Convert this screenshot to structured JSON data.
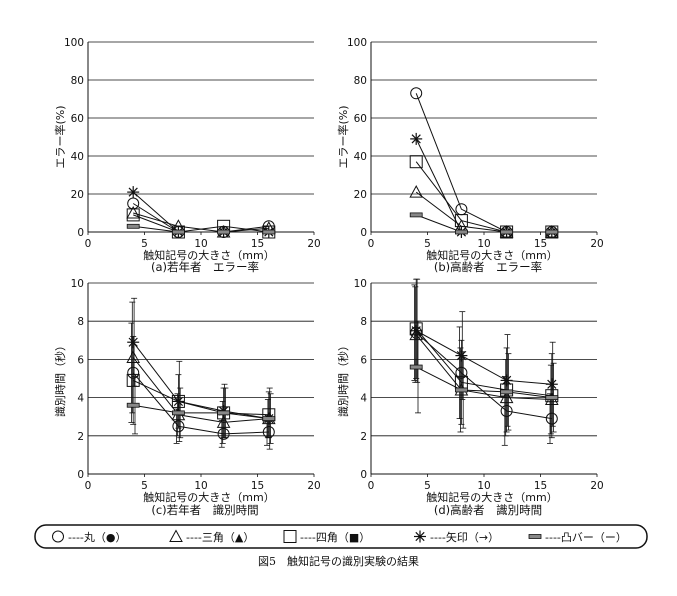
{
  "figure": {
    "caption": "図5　触知記号の識別実験の結果"
  },
  "legend": {
    "items": [
      {
        "marker": "circle",
        "label": "----丸（●）"
      },
      {
        "marker": "triangle",
        "label": "----三角（▲）"
      },
      {
        "marker": "square",
        "label": "----四角（■）"
      },
      {
        "marker": "asterisk",
        "label": "----矢印（→）"
      },
      {
        "marker": "bar",
        "label": "----凸バー（ー）"
      }
    ]
  },
  "chart_data": [
    {
      "type": "line",
      "subtitle": "(a)若年者　エラー率",
      "xlabel": "触知記号の大きさ（mm）",
      "ylabel": "エラー率(%)",
      "xlim": [
        0,
        20
      ],
      "ylim": [
        0,
        100
      ],
      "xticks": [
        0,
        5,
        10,
        15,
        20
      ],
      "yticks": [
        0,
        20,
        40,
        60,
        80,
        100
      ],
      "x": [
        4,
        8,
        12,
        16
      ],
      "series": [
        {
          "marker": "circle",
          "values": [
            15,
            0,
            0,
            3
          ]
        },
        {
          "marker": "triangle",
          "values": [
            10,
            3,
            0,
            2
          ]
        },
        {
          "marker": "square",
          "values": [
            9,
            0,
            3,
            0
          ]
        },
        {
          "marker": "asterisk",
          "values": [
            21,
            0,
            0,
            0
          ]
        },
        {
          "marker": "bar",
          "values": [
            3,
            0,
            0,
            0
          ]
        }
      ]
    },
    {
      "type": "line",
      "subtitle": "(b)高齢者　エラー率",
      "xlabel": "触知記号の大きさ（mm）",
      "ylabel": "エラー率(%)",
      "xlim": [
        0,
        20
      ],
      "ylim": [
        0,
        100
      ],
      "xticks": [
        0,
        5,
        10,
        15,
        20
      ],
      "yticks": [
        0,
        20,
        40,
        60,
        80,
        100
      ],
      "x": [
        4,
        8,
        12,
        16
      ],
      "series": [
        {
          "marker": "circle",
          "values": [
            73,
            12,
            0,
            0
          ]
        },
        {
          "marker": "triangle",
          "values": [
            21,
            3,
            0,
            0
          ]
        },
        {
          "marker": "square",
          "values": [
            37,
            6,
            0,
            0
          ]
        },
        {
          "marker": "asterisk",
          "values": [
            49,
            0,
            0,
            0
          ]
        },
        {
          "marker": "bar",
          "values": [
            9,
            0,
            0,
            0
          ]
        }
      ]
    },
    {
      "type": "line",
      "subtitle": "(c)若年者　識別時間",
      "xlabel": "触知記号の大きさ（mm）",
      "ylabel": "識別時間（秒）",
      "xlim": [
        0,
        20
      ],
      "ylim": [
        0,
        10
      ],
      "xticks": [
        0,
        5,
        10,
        15,
        20
      ],
      "yticks": [
        0,
        2,
        4,
        6,
        8,
        10
      ],
      "x": [
        4,
        8,
        12,
        16
      ],
      "series": [
        {
          "marker": "circle",
          "values": [
            5.3,
            2.5,
            2.1,
            2.2
          ],
          "err": [
            2.6,
            0.9,
            0.7,
            0.7
          ]
        },
        {
          "marker": "triangle",
          "values": [
            6.1,
            3.1,
            2.7,
            2.9
          ],
          "err": [
            2.9,
            1.1,
            1.1,
            1.0
          ]
        },
        {
          "marker": "square",
          "values": [
            4.9,
            3.8,
            3.2,
            3.1
          ],
          "err": [
            2.3,
            1.4,
            1.3,
            1.2
          ]
        },
        {
          "marker": "asterisk",
          "values": [
            6.9,
            3.8,
            3.3,
            2.9
          ],
          "err": [
            2.3,
            2.1,
            1.4,
            1.6
          ]
        },
        {
          "marker": "bar",
          "values": [
            3.6,
            3.2,
            3.2,
            2.9
          ],
          "err": [
            1.5,
            1.3,
            1.3,
            1.3
          ]
        }
      ]
    },
    {
      "type": "line",
      "subtitle": "(d)高齢者　識別時間",
      "xlabel": "触知記号の大きさ（mm）",
      "ylabel": "識別時間（秒）",
      "xlim": [
        0,
        20
      ],
      "ylim": [
        0,
        10
      ],
      "xticks": [
        0,
        5,
        10,
        15,
        20
      ],
      "yticks": [
        0,
        2,
        4,
        6,
        8,
        10
      ],
      "x": [
        4,
        8,
        12,
        16
      ],
      "series": [
        {
          "marker": "circle",
          "values": [
            7.4,
            5.3,
            3.3,
            2.9
          ],
          "err": [
            2.5,
            2.4,
            1.8,
            1.3
          ]
        },
        {
          "marker": "triangle",
          "values": [
            7.3,
            4.4,
            4.0,
            3.9
          ],
          "err": [
            2.5,
            2.2,
            2.0,
            1.8
          ]
        },
        {
          "marker": "square",
          "values": [
            7.6,
            4.8,
            4.4,
            4.1
          ],
          "err": [
            2.6,
            2.2,
            2.2,
            2.2
          ]
        },
        {
          "marker": "asterisk",
          "values": [
            7.5,
            6.2,
            4.9,
            4.7
          ],
          "err": [
            2.7,
            2.3,
            2.4,
            2.2
          ]
        },
        {
          "marker": "bar",
          "values": [
            5.6,
            4.4,
            4.3,
            4.0
          ],
          "err": [
            2.4,
            2.0,
            2.0,
            1.8
          ]
        }
      ]
    }
  ]
}
